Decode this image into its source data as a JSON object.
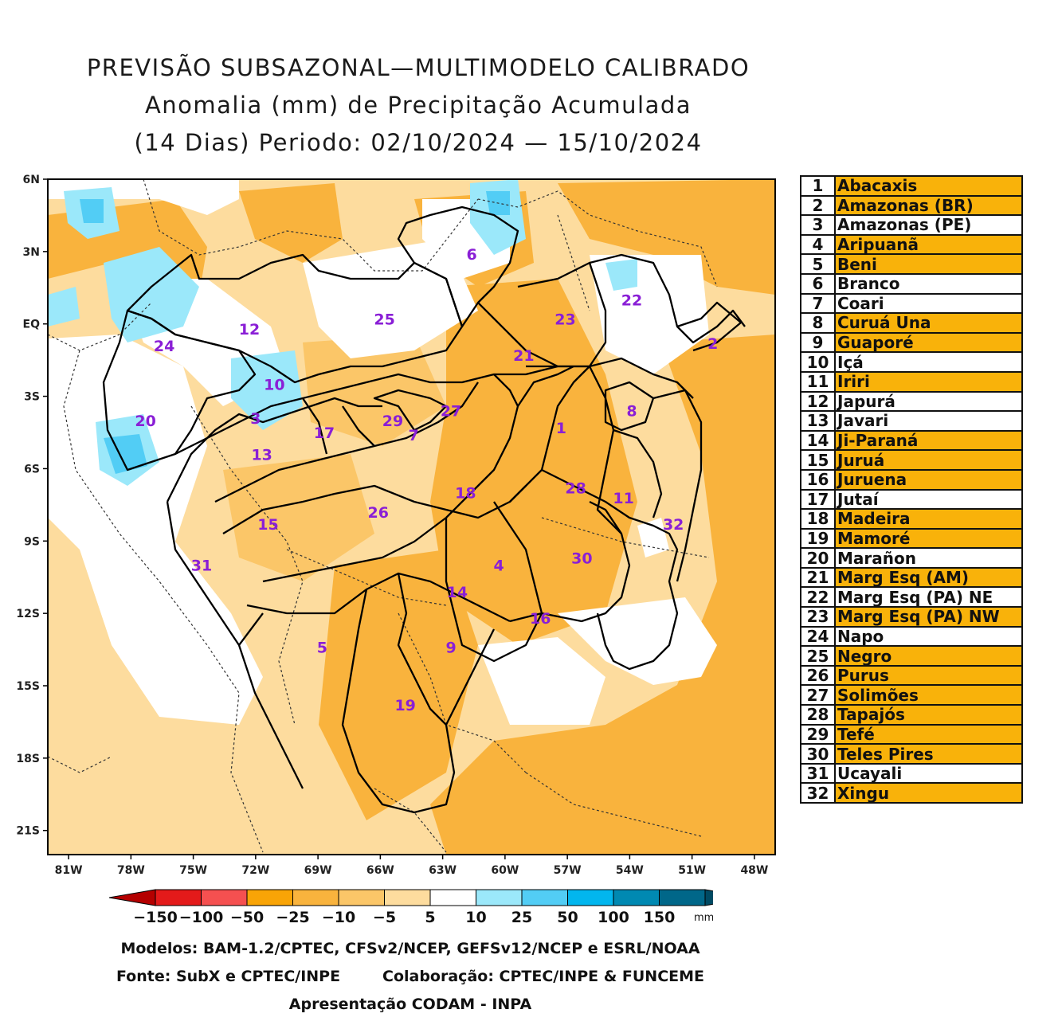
{
  "title": {
    "line1": "PREVISÃO SUBSAZONAL—MULTIMODELO CALIBRADO",
    "line2": "Anomalia (mm) de Precipitação Acumulada",
    "line3": "(14 Dias) Periodo: 02/10/2024 — 15/10/2024"
  },
  "map": {
    "lat_labels": [
      "6N",
      "3N",
      "EQ",
      "3S",
      "6S",
      "9S",
      "12S",
      "15S",
      "18S",
      "21S"
    ],
    "lon_labels": [
      "81W",
      "78W",
      "75W",
      "72W",
      "69W",
      "66W",
      "63W",
      "60W",
      "57W",
      "54W",
      "51W",
      "48W"
    ],
    "extent": {
      "lon_min": -82,
      "lon_max": -47,
      "lat_min": -22,
      "lat_max": 6
    },
    "basin_numbers": [
      {
        "n": "1",
        "lon": -57.3,
        "lat": -4.3
      },
      {
        "n": "2",
        "lon": -50.0,
        "lat": -0.8
      },
      {
        "n": "3",
        "lon": -72.0,
        "lat": -3.9
      },
      {
        "n": "4",
        "lon": -60.3,
        "lat": -10.0
      },
      {
        "n": "5",
        "lon": -68.8,
        "lat": -13.4
      },
      {
        "n": "6",
        "lon": -61.6,
        "lat": 2.9
      },
      {
        "n": "7",
        "lon": -64.4,
        "lat": -4.6
      },
      {
        "n": "8",
        "lon": -53.9,
        "lat": -3.6
      },
      {
        "n": "9",
        "lon": -62.6,
        "lat": -13.4
      },
      {
        "n": "10",
        "lon": -71.1,
        "lat": -2.5
      },
      {
        "n": "11",
        "lon": -54.3,
        "lat": -7.2
      },
      {
        "n": "12",
        "lon": -72.3,
        "lat": -0.2
      },
      {
        "n": "13",
        "lon": -71.7,
        "lat": -5.4
      },
      {
        "n": "14",
        "lon": -62.3,
        "lat": -11.1
      },
      {
        "n": "15",
        "lon": -71.4,
        "lat": -8.3
      },
      {
        "n": "16",
        "lon": -58.3,
        "lat": -12.2
      },
      {
        "n": "17",
        "lon": -68.7,
        "lat": -4.5
      },
      {
        "n": "18",
        "lon": -61.9,
        "lat": -7.0
      },
      {
        "n": "19",
        "lon": -64.8,
        "lat": -15.8
      },
      {
        "n": "20",
        "lon": -77.3,
        "lat": -4.0
      },
      {
        "n": "21",
        "lon": -59.1,
        "lat": -1.3
      },
      {
        "n": "22",
        "lon": -53.9,
        "lat": 1.0
      },
      {
        "n": "23",
        "lon": -57.1,
        "lat": 0.2
      },
      {
        "n": "24",
        "lon": -76.4,
        "lat": -0.9
      },
      {
        "n": "25",
        "lon": -65.8,
        "lat": 0.2
      },
      {
        "n": "26",
        "lon": -66.1,
        "lat": -7.8
      },
      {
        "n": "27",
        "lon": -62.6,
        "lat": -3.6
      },
      {
        "n": "28",
        "lon": -56.6,
        "lat": -6.8
      },
      {
        "n": "29",
        "lon": -65.4,
        "lat": -4.0
      },
      {
        "n": "30",
        "lon": -56.3,
        "lat": -9.7
      },
      {
        "n": "31",
        "lon": -74.6,
        "lat": -10.0
      },
      {
        "n": "32",
        "lon": -51.9,
        "lat": -8.3
      }
    ]
  },
  "legend_table": [
    {
      "num": "1",
      "name": "Abacaxis",
      "highlight": true
    },
    {
      "num": "2",
      "name": "Amazonas (BR)",
      "highlight": true
    },
    {
      "num": "3",
      "name": "Amazonas (PE)",
      "highlight": false
    },
    {
      "num": "4",
      "name": "Aripuanã",
      "highlight": true
    },
    {
      "num": "5",
      "name": "Beni",
      "highlight": true
    },
    {
      "num": "6",
      "name": "Branco",
      "highlight": false
    },
    {
      "num": "7",
      "name": "Coari",
      "highlight": false
    },
    {
      "num": "8",
      "name": "Curuá Una",
      "highlight": true
    },
    {
      "num": "9",
      "name": "Guaporé",
      "highlight": true
    },
    {
      "num": "10",
      "name": "Içá",
      "highlight": false
    },
    {
      "num": "11",
      "name": "Iriri",
      "highlight": true
    },
    {
      "num": "12",
      "name": "Japurá",
      "highlight": false
    },
    {
      "num": "13",
      "name": "Javari",
      "highlight": false
    },
    {
      "num": "14",
      "name": "Ji-Paraná",
      "highlight": true
    },
    {
      "num": "15",
      "name": "Juruá",
      "highlight": true
    },
    {
      "num": "16",
      "name": "Juruena",
      "highlight": true
    },
    {
      "num": "17",
      "name": "Jutaí",
      "highlight": false
    },
    {
      "num": "18",
      "name": "Madeira",
      "highlight": true
    },
    {
      "num": "19",
      "name": "Mamoré",
      "highlight": true
    },
    {
      "num": "20",
      "name": "Marañon",
      "highlight": false
    },
    {
      "num": "21",
      "name": "Marg Esq (AM)",
      "highlight": true
    },
    {
      "num": "22",
      "name": "Marg Esq (PA) NE",
      "highlight": false
    },
    {
      "num": "23",
      "name": "Marg Esq (PA) NW",
      "highlight": true
    },
    {
      "num": "24",
      "name": "Napo",
      "highlight": false
    },
    {
      "num": "25",
      "name": "Negro",
      "highlight": true
    },
    {
      "num": "26",
      "name": "Purus",
      "highlight": true
    },
    {
      "num": "27",
      "name": "Solimões",
      "highlight": true
    },
    {
      "num": "28",
      "name": "Tapajós",
      "highlight": true
    },
    {
      "num": "29",
      "name": "Tefé",
      "highlight": true
    },
    {
      "num": "30",
      "name": "Teles Pires",
      "highlight": true
    },
    {
      "num": "31",
      "name": "Ucayali",
      "highlight": false
    },
    {
      "num": "32",
      "name": "Xingu",
      "highlight": true
    }
  ],
  "colorbar": {
    "labels": [
      "-150",
      "-100",
      "-50",
      "-25",
      "-10",
      "-5",
      "5",
      "10",
      "25",
      "50",
      "100",
      "150"
    ],
    "colors": [
      "#b40000",
      "#e41a1a",
      "#f55050",
      "#f9a406",
      "#f9b33d",
      "#fbc668",
      "#fddc9e",
      "#ffffff",
      "#9be8fa",
      "#52cdf5",
      "#02b6ee",
      "#0089b2",
      "#006789",
      "#004a63"
    ],
    "unit": "mm"
  },
  "footer": {
    "models": "Modelos: BAM-1.2/CPTEC, CFSv2/NCEP, GEFSv12/NCEP e ESRL/NOAA",
    "source": "Fonte: SubX e CPTEC/INPE        Colaboração: CPTEC/INPE & FUNCEME",
    "presentation": "Apresentação CODAM - INPA"
  }
}
